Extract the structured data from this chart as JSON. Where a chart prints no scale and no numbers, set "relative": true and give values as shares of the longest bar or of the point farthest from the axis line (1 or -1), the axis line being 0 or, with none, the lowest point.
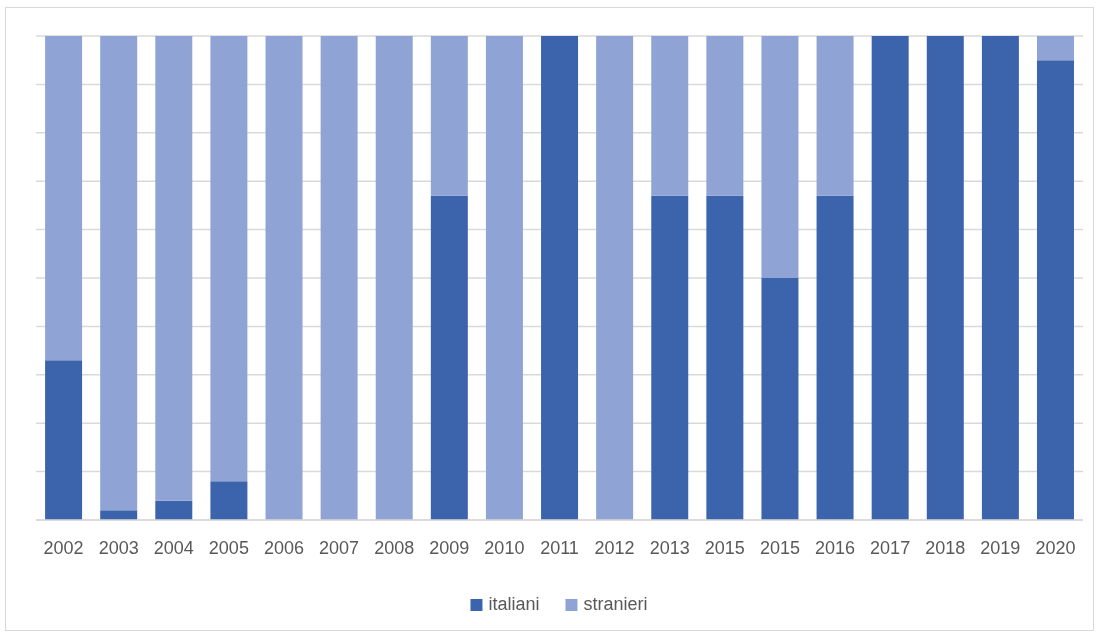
{
  "chart_data": {
    "type": "bar",
    "stacked": true,
    "relative": true,
    "categories": [
      "2002",
      "2003",
      "2004",
      "2005",
      "2006",
      "2007",
      "2008",
      "2009",
      "2010",
      "2011",
      "2012",
      "2013",
      "2015",
      "2015",
      "2016",
      "2017",
      "2018",
      "2019",
      "2020"
    ],
    "series": [
      {
        "name": "italiani",
        "color": "#3c64ad",
        "values": [
          0.33,
          0.02,
          0.04,
          0.08,
          0,
          0,
          0,
          0.67,
          0,
          1,
          0,
          0.67,
          0.67,
          0.5,
          0.67,
          1,
          1,
          1,
          0.95
        ]
      },
      {
        "name": "stranieri",
        "color": "#8fa4d5",
        "values": [
          0.67,
          0.98,
          0.96,
          0.92,
          1,
          1,
          1,
          0.33,
          1,
          0,
          1,
          0.33,
          0.33,
          0.5,
          0.33,
          0,
          0,
          0,
          0.05
        ]
      }
    ],
    "grid": "y",
    "legend": "bottom"
  }
}
